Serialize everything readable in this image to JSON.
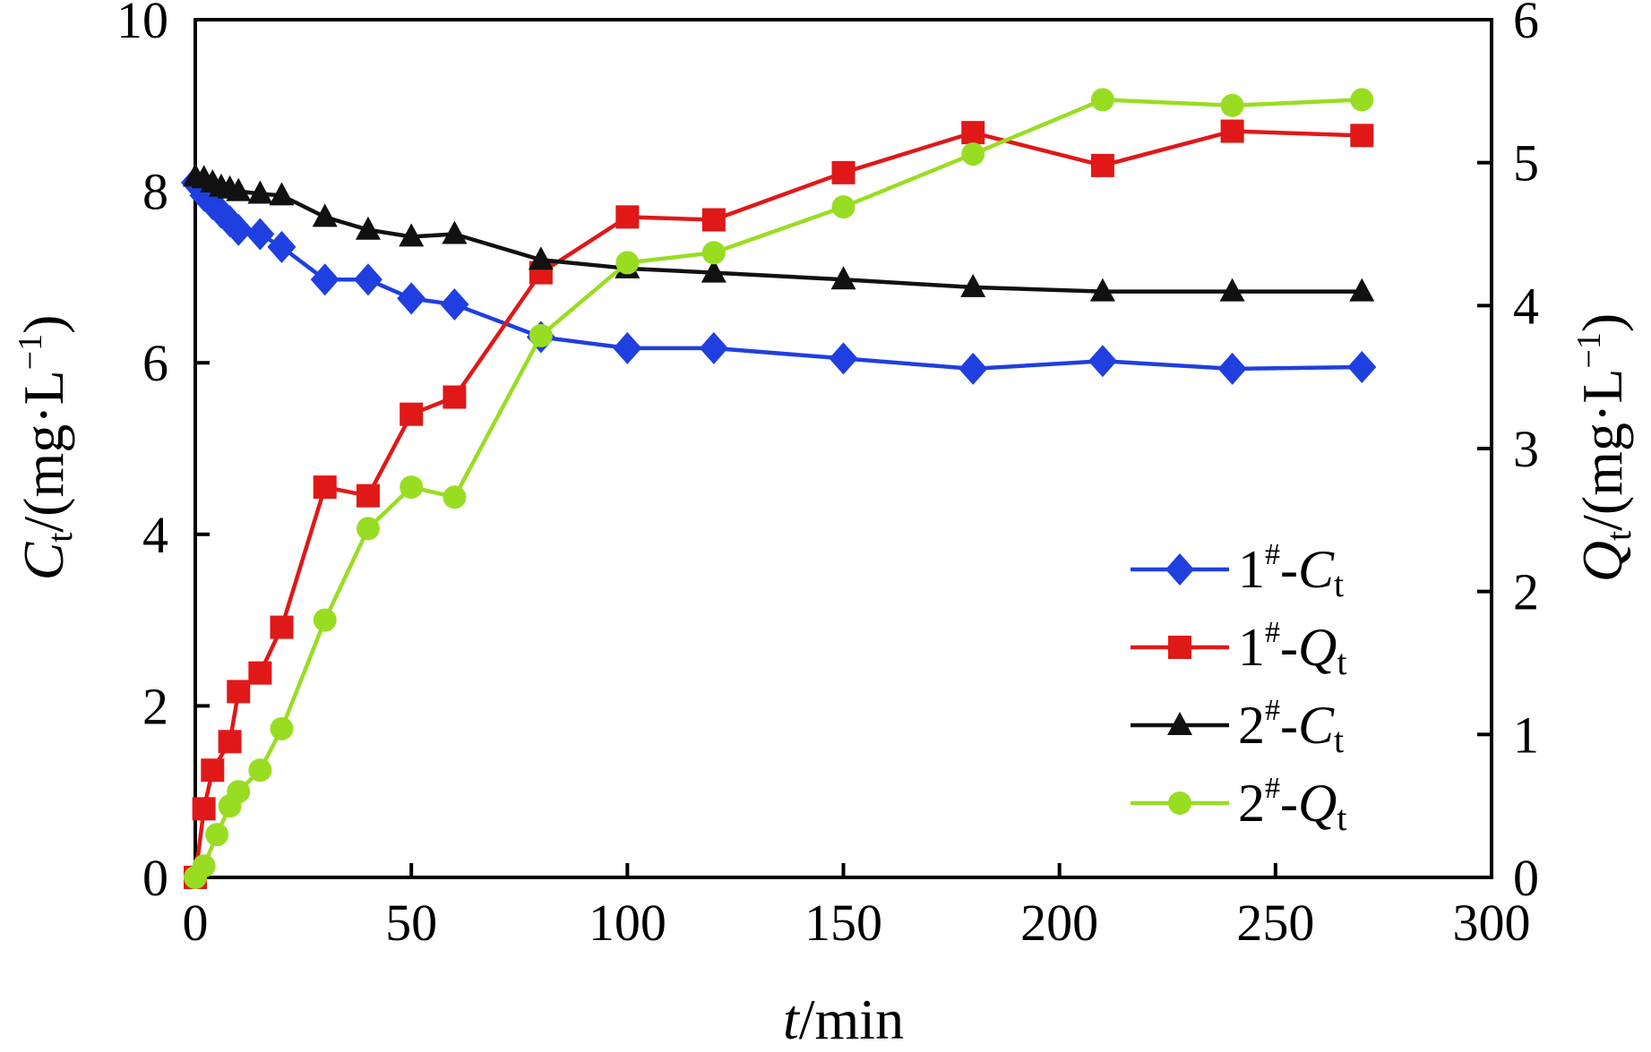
{
  "chart_data": {
    "type": "line",
    "title": "",
    "xlabel": {
      "var": "t",
      "unit": "/min"
    },
    "ylabel_left": {
      "var": "C",
      "sub": "t",
      "unit": "/(mg·L",
      "sup": "−1",
      "close": ")"
    },
    "ylabel_right": {
      "var": "Q",
      "sub": "t",
      "unit": "/(mg·L",
      "sup": "−1",
      "close": ")"
    },
    "xlim": [
      0,
      300
    ],
    "ylim_left": [
      0,
      10
    ],
    "ylim_right": [
      0,
      6
    ],
    "x_ticks": [
      "0",
      "50",
      "100",
      "150",
      "200",
      "250",
      "300"
    ],
    "y_left_ticks": [
      "0",
      "2",
      "4",
      "6",
      "8",
      "10"
    ],
    "y_right_ticks": [
      "0",
      "1",
      "2",
      "3",
      "4",
      "5",
      "6"
    ],
    "grid": false,
    "legend_position": "lower-right",
    "series": [
      {
        "name": "1#-Ct",
        "label": {
          "num": "1",
          "sup": "#",
          "var": "C",
          "sub": "t"
        },
        "axis": "left",
        "color": "#1f3fe0",
        "marker": "diamond",
        "points": [
          [
            0,
            8.1
          ],
          [
            2,
            7.95
          ],
          [
            4,
            7.85
          ],
          [
            6,
            7.75
          ],
          [
            8,
            7.65
          ],
          [
            10,
            7.55
          ],
          [
            15,
            7.5
          ],
          [
            20,
            7.35
          ],
          [
            30,
            6.97
          ],
          [
            40,
            6.97
          ],
          [
            50,
            6.75
          ],
          [
            60,
            6.68
          ],
          [
            80,
            6.3
          ],
          [
            100,
            6.17
          ],
          [
            120,
            6.17
          ],
          [
            150,
            6.05
          ],
          [
            180,
            5.93
          ],
          [
            210,
            6.02
          ],
          [
            240,
            5.93
          ],
          [
            270,
            5.95
          ]
        ]
      },
      {
        "name": "1#-Qt",
        "label": {
          "num": "1",
          "sup": "#",
          "var": "Q",
          "sub": "t"
        },
        "axis": "right",
        "color": "#e01818",
        "marker": "square",
        "points": [
          [
            0,
            0
          ],
          [
            2,
            0.48
          ],
          [
            4,
            0.75
          ],
          [
            8,
            0.95
          ],
          [
            10,
            1.3
          ],
          [
            15,
            1.43
          ],
          [
            20,
            1.75
          ],
          [
            30,
            2.73
          ],
          [
            40,
            2.67
          ],
          [
            50,
            3.24
          ],
          [
            60,
            3.36
          ],
          [
            80,
            4.23
          ],
          [
            100,
            4.62
          ],
          [
            120,
            4.6
          ],
          [
            150,
            4.93
          ],
          [
            180,
            5.21
          ],
          [
            210,
            4.98
          ],
          [
            240,
            5.22
          ],
          [
            270,
            5.19
          ]
        ]
      },
      {
        "name": "2#-Ct",
        "label": {
          "num": "2",
          "sup": "#",
          "var": "C",
          "sub": "t"
        },
        "axis": "left",
        "color": "#111111",
        "marker": "triangle",
        "points": [
          [
            0,
            8.17
          ],
          [
            2,
            8.15
          ],
          [
            4,
            8.1
          ],
          [
            6,
            8.05
          ],
          [
            8,
            8.03
          ],
          [
            10,
            8.0
          ],
          [
            15,
            7.97
          ],
          [
            20,
            7.95
          ],
          [
            30,
            7.7
          ],
          [
            40,
            7.55
          ],
          [
            50,
            7.47
          ],
          [
            60,
            7.5
          ],
          [
            80,
            7.2
          ],
          [
            100,
            7.1
          ],
          [
            120,
            7.05
          ],
          [
            150,
            6.97
          ],
          [
            180,
            6.88
          ],
          [
            210,
            6.83
          ],
          [
            240,
            6.83
          ],
          [
            270,
            6.83
          ]
        ]
      },
      {
        "name": "2#-Qt",
        "label": {
          "num": "2",
          "sup": "#",
          "var": "Q",
          "sub": "t"
        },
        "axis": "right",
        "color": "#99dd22",
        "marker": "circle",
        "points": [
          [
            0,
            0
          ],
          [
            2,
            0.08
          ],
          [
            5,
            0.3
          ],
          [
            8,
            0.5
          ],
          [
            10,
            0.6
          ],
          [
            15,
            0.75
          ],
          [
            20,
            1.04
          ],
          [
            30,
            1.8
          ],
          [
            40,
            2.44
          ],
          [
            50,
            2.73
          ],
          [
            60,
            2.66
          ],
          [
            80,
            3.79
          ],
          [
            100,
            4.3
          ],
          [
            120,
            4.37
          ],
          [
            150,
            4.69
          ],
          [
            180,
            5.06
          ],
          [
            210,
            5.44
          ],
          [
            240,
            5.4
          ],
          [
            270,
            5.44
          ]
        ]
      }
    ]
  }
}
